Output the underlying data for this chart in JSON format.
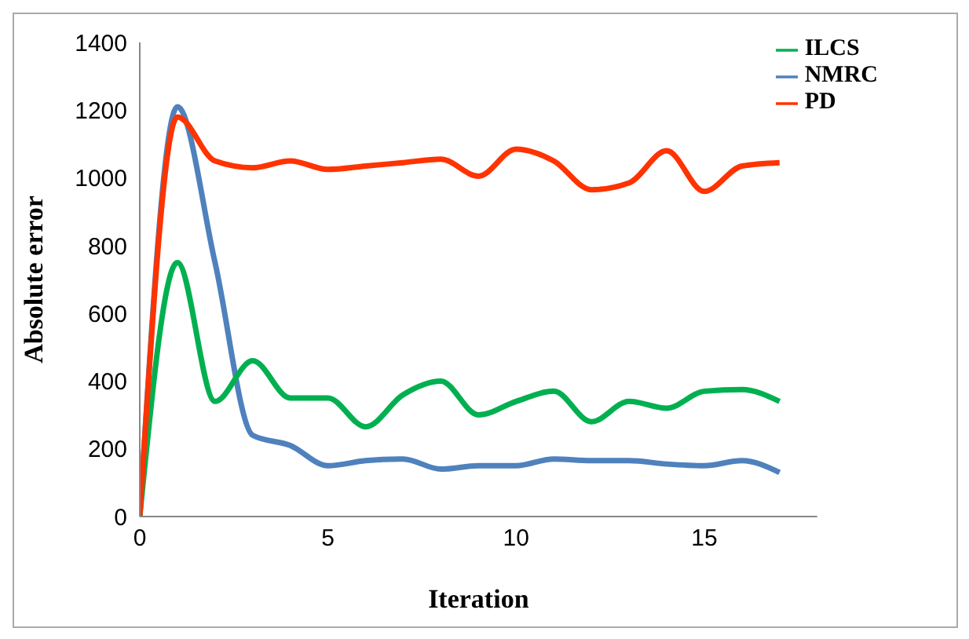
{
  "chart_data": {
    "type": "line",
    "xlabel": "Iteration",
    "ylabel": "Absolute error",
    "x": [
      0,
      1,
      2,
      3,
      4,
      5,
      6,
      7,
      8,
      9,
      10,
      11,
      12,
      13,
      14,
      15,
      16,
      17
    ],
    "series": [
      {
        "name": "NMRC",
        "color": "#4f81bd",
        "values": [
          0,
          1210,
          750,
          240,
          210,
          150,
          165,
          170,
          140,
          150,
          150,
          170,
          165,
          165,
          155,
          150,
          165,
          130
        ]
      },
      {
        "name": "ILCS",
        "color": "#00b050",
        "values": [
          0,
          750,
          340,
          460,
          350,
          350,
          265,
          360,
          400,
          300,
          340,
          370,
          280,
          340,
          320,
          370,
          375,
          340
        ]
      },
      {
        "name": "PD",
        "color": "#ff3300",
        "values": [
          0,
          1180,
          1050,
          1030,
          1050,
          1025,
          1035,
          1045,
          1055,
          1005,
          1085,
          1050,
          965,
          985,
          1080,
          960,
          1035,
          1045
        ]
      }
    ],
    "xlim": [
      0,
      18
    ],
    "xticks": [
      0,
      5,
      10,
      15
    ],
    "ylim": [
      0,
      1400
    ],
    "yticks": [
      0,
      200,
      400,
      600,
      800,
      1000,
      1200,
      1400
    ],
    "grid": false,
    "legend": "top right",
    "marker": "none",
    "line_style": "solid"
  }
}
